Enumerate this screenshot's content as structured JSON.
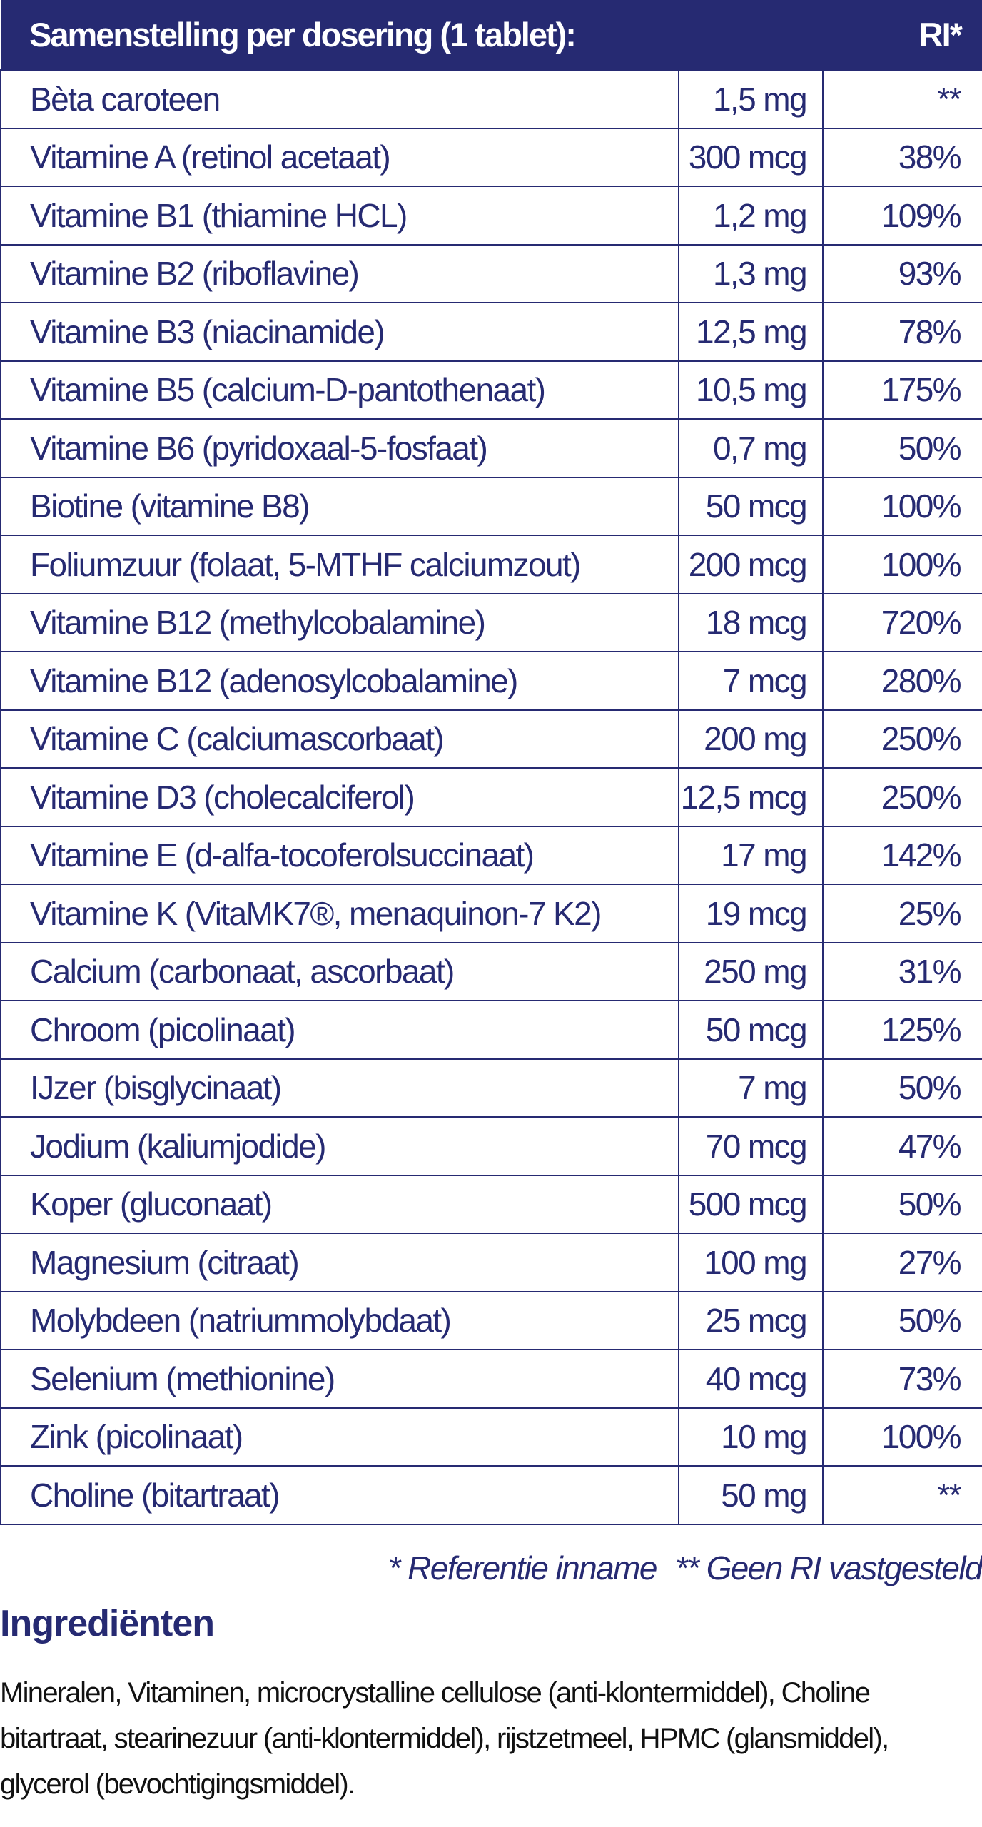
{
  "table": {
    "header": {
      "title": "Samenstelling per dosering (1 tablet):",
      "ri": "RI*"
    },
    "rows": [
      {
        "name": "Bèta caroteen",
        "amount": "1,5 mg",
        "ri": "**"
      },
      {
        "name": "Vitamine A (retinol acetaat)",
        "amount": "300 mcg",
        "ri": "38%"
      },
      {
        "name": "Vitamine B1 (thiamine HCL)",
        "amount": "1,2 mg",
        "ri": "109%"
      },
      {
        "name": "Vitamine B2 (riboflavine)",
        "amount": "1,3 mg",
        "ri": "93%"
      },
      {
        "name": "Vitamine B3 (niacinamide)",
        "amount": "12,5 mg",
        "ri": "78%"
      },
      {
        "name": "Vitamine B5 (calcium-D-pantothenaat)",
        "amount": "10,5 mg",
        "ri": "175%"
      },
      {
        "name": "Vitamine B6 (pyridoxaal-5-fosfaat)",
        "amount": "0,7 mg",
        "ri": "50%"
      },
      {
        "name": "Biotine (vitamine B8)",
        "amount": "50 mcg",
        "ri": "100%"
      },
      {
        "name": "Foliumzuur (folaat, 5-MTHF calciumzout)",
        "amount": "200 mcg",
        "ri": "100%"
      },
      {
        "name": "Vitamine B12 (methylcobalamine)",
        "amount": "18 mcg",
        "ri": "720%"
      },
      {
        "name": "Vitamine B12 (adenosylcobalamine)",
        "amount": "7 mcg",
        "ri": "280%"
      },
      {
        "name": "Vitamine C (calciumascorbaat)",
        "amount": "200 mg",
        "ri": "250%"
      },
      {
        "name": "Vitamine D3 (cholecalciferol)",
        "amount": "12,5 mcg",
        "ri": "250%"
      },
      {
        "name": "Vitamine E (d-alfa-tocoferolsuccinaat)",
        "amount": "17 mg",
        "ri": "142%"
      },
      {
        "name": "Vitamine K (VitaMK7®, menaquinon-7 K2)",
        "amount": "19 mcg",
        "ri": "25%"
      },
      {
        "name": "Calcium (carbonaat, ascorbaat)",
        "amount": "250 mg",
        "ri": "31%"
      },
      {
        "name": "Chroom (picolinaat)",
        "amount": "50 mcg",
        "ri": "125%"
      },
      {
        "name": "IJzer (bisglycinaat)",
        "amount": "7 mg",
        "ri": "50%"
      },
      {
        "name": "Jodium (kaliumjodide)",
        "amount": "70 mcg",
        "ri": "47%"
      },
      {
        "name": "Koper (gluconaat)",
        "amount": "500 mcg",
        "ri": "50%"
      },
      {
        "name": "Magnesium (citraat)",
        "amount": "100 mg",
        "ri": "27%"
      },
      {
        "name": "Molybdeen (natriummolybdaat)",
        "amount": "25 mcg",
        "ri": "50%"
      },
      {
        "name": "Selenium (methionine)",
        "amount": "40 mcg",
        "ri": "73%"
      },
      {
        "name": "Zink (picolinaat)",
        "amount": "10 mg",
        "ri": "100%"
      },
      {
        "name": "Choline (bitartraat)",
        "amount": "50 mg",
        "ri": "**"
      }
    ]
  },
  "footnotes": {
    "ri": "* Referentie inname",
    "no_ri": "** Geen RI vastgesteld"
  },
  "ingredients": {
    "heading": "Ingrediënten",
    "text": "Mineralen, Vitaminen, microcrystalline cellulose (anti-klontermiddel), Choline bitartraat, stearinezuur (anti-klontermiddel), rijstzetmeel, HPMC (glansmiddel), glycerol (bevochtigingsmiddel)."
  },
  "colors": {
    "brand_navy": "#262a72",
    "text_dark": "#111111"
  }
}
